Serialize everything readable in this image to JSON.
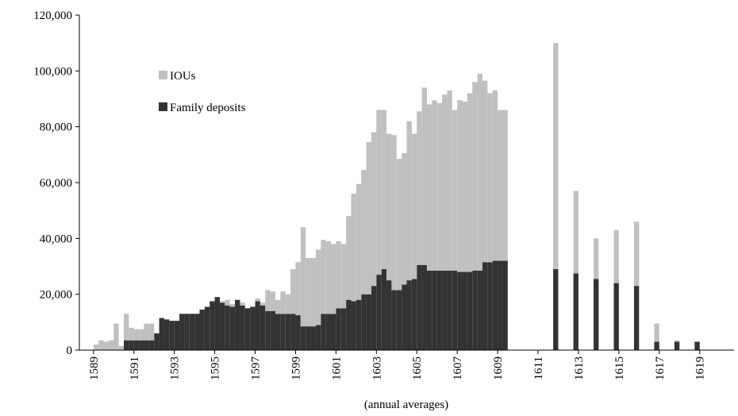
{
  "chart_data": {
    "type": "bar",
    "stacked": true,
    "xlabel": "(annual averages)",
    "x": [
      1589,
      1589.25,
      1589.5,
      1589.75,
      1590,
      1590.25,
      1590.5,
      1590.75,
      1591,
      1591.25,
      1591.5,
      1591.75,
      1592,
      1592.25,
      1592.5,
      1592.75,
      1593,
      1593.25,
      1593.5,
      1593.75,
      1594,
      1594.25,
      1594.5,
      1594.75,
      1595,
      1595.25,
      1595.5,
      1595.75,
      1596,
      1596.25,
      1596.5,
      1596.75,
      1597,
      1597.25,
      1597.5,
      1597.75,
      1598,
      1598.25,
      1598.5,
      1598.75,
      1599,
      1599.25,
      1599.5,
      1599.75,
      1600,
      1600.25,
      1600.5,
      1600.75,
      1601,
      1601.25,
      1601.5,
      1601.75,
      1602,
      1602.25,
      1602.5,
      1602.75,
      1603,
      1603.25,
      1603.5,
      1603.75,
      1604,
      1604.25,
      1604.5,
      1604.75,
      1605,
      1605.25,
      1605.5,
      1605.75,
      1606,
      1606.25,
      1606.5,
      1606.75,
      1607,
      1607.25,
      1607.5,
      1607.75,
      1608,
      1608.25,
      1608.5,
      1608.75,
      1609,
      1609.25,
      1611.75,
      1612.75,
      1613.75,
      1614.75,
      1615.75,
      1616.75,
      1617.75,
      1618.75
    ],
    "series": [
      {
        "name": "Family deposits",
        "color": "#333333",
        "values": [
          0,
          0,
          0,
          0,
          0,
          0,
          3500,
          3500,
          3500,
          3500,
          3500,
          3500,
          6000,
          11500,
          11000,
          10500,
          10500,
          13000,
          13000,
          13000,
          13000,
          14500,
          15500,
          17500,
          19000,
          17000,
          16000,
          15500,
          18000,
          16000,
          15000,
          15500,
          17500,
          16000,
          14000,
          14000,
          13000,
          13000,
          13000,
          13000,
          12500,
          8500,
          8500,
          8500,
          9000,
          13000,
          13000,
          13000,
          15000,
          15000,
          18000,
          17500,
          18000,
          20000,
          20000,
          23000,
          27000,
          29000,
          25000,
          21500,
          21500,
          23500,
          25000,
          25500,
          30500,
          30500,
          28500,
          28500,
          28500,
          28500,
          28500,
          28500,
          28000,
          28000,
          28000,
          28500,
          28500,
          31500,
          31500,
          32000,
          32000,
          32000,
          29000,
          27500,
          25500,
          24000,
          23000,
          3000,
          3000,
          3000
        ]
      },
      {
        "name": "IOUs",
        "color": "#c0c0c0",
        "values": [
          2000,
          3500,
          3000,
          3500,
          9500,
          1500,
          9500,
          4500,
          4000,
          4000,
          6000,
          6000,
          0,
          0,
          0,
          0,
          0,
          0,
          0,
          0,
          0,
          0,
          0,
          0,
          0,
          500,
          2000,
          1000,
          0,
          1000,
          0,
          0,
          1000,
          1000,
          7500,
          7000,
          5000,
          8000,
          7000,
          16000,
          19000,
          35500,
          24500,
          24500,
          27000,
          26500,
          26000,
          25000,
          24000,
          23000,
          30000,
          38500,
          41500,
          44500,
          54500,
          55000,
          59000,
          57000,
          52500,
          55500,
          47000,
          47000,
          57000,
          52000,
          55000,
          63500,
          59500,
          61000,
          60000,
          63000,
          64500,
          57500,
          61500,
          61000,
          64000,
          67500,
          70500,
          65000,
          60500,
          61000,
          54000,
          54000,
          81000,
          29500,
          14500,
          19000,
          23000,
          6500,
          500,
          0
        ]
      }
    ],
    "xlim": [
      1588.3,
      1620.7
    ],
    "xticks": [
      1589,
      1591,
      1593,
      1595,
      1597,
      1599,
      1601,
      1603,
      1605,
      1607,
      1609,
      1611,
      1613,
      1615,
      1617,
      1619
    ],
    "ylim": [
      0,
      120000
    ],
    "yticks": [
      0,
      {
        "value": 20000,
        "label": "20,000"
      },
      {
        "value": 40000,
        "label": "40,000"
      },
      {
        "value": 60000,
        "label": "60,000"
      },
      {
        "value": 80000,
        "label": "80,000"
      },
      {
        "value": 100000,
        "label": "100,000"
      },
      {
        "value": 120000,
        "label": "120,000"
      }
    ],
    "grid": false,
    "legend": "upper left"
  }
}
